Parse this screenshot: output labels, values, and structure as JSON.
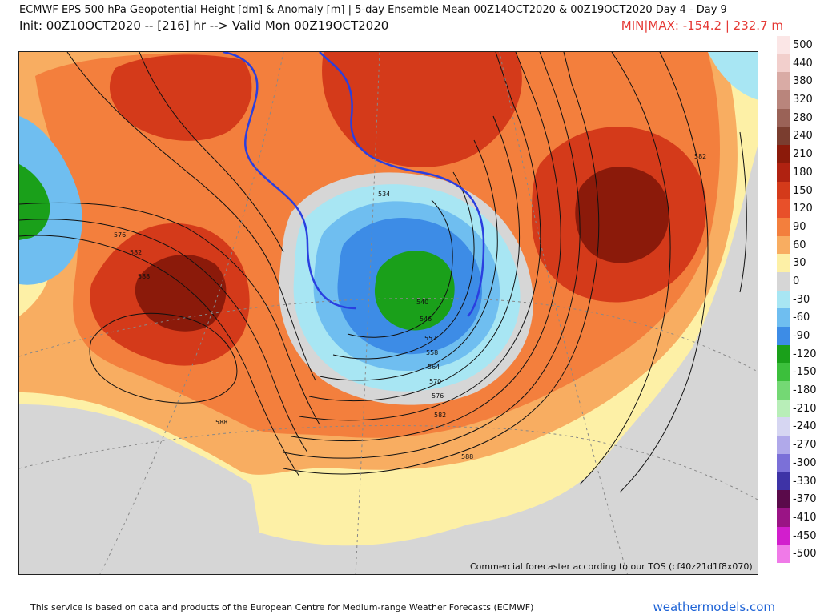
{
  "header": {
    "title": "ECMWF EPS 500 hPa Geopotential Height [dm] & Anomaly [m] | 5-day Ensemble Mean 00Z14OCT2020 & 00Z19OCT2020   Day 4 - Day 9",
    "init": "Init: 00Z10OCT2020 -- [216] hr --> Valid Mon 00Z19OCT2020",
    "minmax": "MIN|MAX: -154.2 | 232.7 m"
  },
  "map": {
    "credit": "Commercial forecaster according to our TOS (cf40z21d1f8x070)",
    "contour_labels": [
      "576",
      "582",
      "588",
      "534",
      "540",
      "546",
      "552",
      "558",
      "564",
      "570",
      "576",
      "582",
      "588",
      "588",
      "582"
    ],
    "colors": {
      "strong_positive": "#8b1a0a",
      "positive": "#e8502a",
      "weak_positive": "#fdf0a6",
      "neutral": "#d6d6d6",
      "negative": "#3d8ce6",
      "strong_negative": "#1aa01a"
    }
  },
  "legend": {
    "items": [
      {
        "label": "500",
        "color": "#fbe6e6"
      },
      {
        "label": "440",
        "color": "#f2cfcc"
      },
      {
        "label": "380",
        "color": "#d9aba5"
      },
      {
        "label": "320",
        "color": "#b9857c"
      },
      {
        "label": "280",
        "color": "#9a6257"
      },
      {
        "label": "240",
        "color": "#7a3d2f"
      },
      {
        "label": "210",
        "color": "#8b1a0a"
      },
      {
        "label": "180",
        "color": "#b02211"
      },
      {
        "label": "150",
        "color": "#d43a1a"
      },
      {
        "label": "120",
        "color": "#e8502a"
      },
      {
        "label": "90",
        "color": "#f37f3d"
      },
      {
        "label": "60",
        "color": "#f8ad61"
      },
      {
        "label": "30",
        "color": "#fdf0a6"
      },
      {
        "label": "0",
        "color": "#d6d6d6"
      },
      {
        "label": "-30",
        "color": "#a8e6f3"
      },
      {
        "label": "-60",
        "color": "#6fbef0"
      },
      {
        "label": "-90",
        "color": "#3d8ce6"
      },
      {
        "label": "-120",
        "color": "#1aa01a"
      },
      {
        "label": "-150",
        "color": "#3cbf3c"
      },
      {
        "label": "-180",
        "color": "#74d874"
      },
      {
        "label": "-210",
        "color": "#b8eeb8"
      },
      {
        "label": "-240",
        "color": "#d6d6f2"
      },
      {
        "label": "-270",
        "color": "#b0a9ea"
      },
      {
        "label": "-300",
        "color": "#7b70d8"
      },
      {
        "label": "-330",
        "color": "#3e33a6"
      },
      {
        "label": "-370",
        "color": "#5a0a4a"
      },
      {
        "label": "-410",
        "color": "#9a1485"
      },
      {
        "label": "-450",
        "color": "#d21ecd"
      },
      {
        "label": "-500",
        "color": "#f07ae8"
      }
    ]
  },
  "footer": {
    "notice": "This service is based on data and products of the European Centre for Medium-range Weather Forecasts (ECMWF)",
    "site": "weathermodels.com"
  }
}
